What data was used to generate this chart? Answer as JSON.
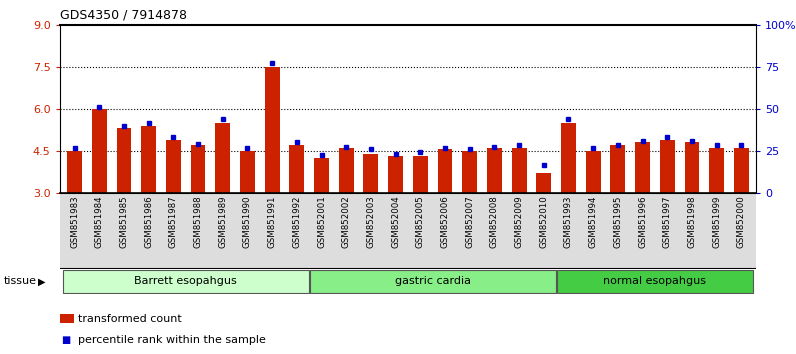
{
  "title": "GDS4350 / 7914878",
  "samples": [
    "GSM851983",
    "GSM851984",
    "GSM851985",
    "GSM851986",
    "GSM851987",
    "GSM851988",
    "GSM851989",
    "GSM851990",
    "GSM851991",
    "GSM851992",
    "GSM852001",
    "GSM852002",
    "GSM852003",
    "GSM852004",
    "GSM852005",
    "GSM852006",
    "GSM852007",
    "GSM852008",
    "GSM852009",
    "GSM852010",
    "GSM851993",
    "GSM851994",
    "GSM851995",
    "GSM851996",
    "GSM851997",
    "GSM851998",
    "GSM851999",
    "GSM852000"
  ],
  "red_values": [
    4.5,
    6.0,
    5.3,
    5.4,
    4.9,
    4.7,
    5.5,
    4.5,
    7.5,
    4.7,
    4.25,
    4.6,
    4.4,
    4.3,
    4.3,
    4.55,
    4.5,
    4.6,
    4.6,
    3.7,
    5.5,
    4.5,
    4.7,
    4.8,
    4.9,
    4.8,
    4.6,
    4.6
  ],
  "blue_values": [
    4.6,
    6.05,
    5.4,
    5.5,
    5.0,
    4.75,
    5.65,
    4.6,
    7.65,
    4.8,
    4.35,
    4.65,
    4.55,
    4.4,
    4.45,
    4.6,
    4.55,
    4.65,
    4.7,
    4.0,
    5.65,
    4.6,
    4.7,
    4.85,
    5.0,
    4.85,
    4.7,
    4.7
  ],
  "groups": [
    {
      "label": "Barrett esopahgus",
      "start": 0,
      "end": 9,
      "color": "#ccffcc"
    },
    {
      "label": "gastric cardia",
      "start": 10,
      "end": 19,
      "color": "#88ee88"
    },
    {
      "label": "normal esopahgus",
      "start": 20,
      "end": 27,
      "color": "#44cc44"
    }
  ],
  "ylim_left": [
    3,
    9
  ],
  "ylim_right": [
    0,
    100
  ],
  "yticks_left": [
    3,
    4.5,
    6,
    7.5,
    9
  ],
  "yticks_right": [
    0,
    25,
    50,
    75,
    100
  ],
  "bar_color": "#cc2200",
  "dot_color": "#0000cc",
  "background_color": "#ffffff",
  "tick_bg_color": "#dddddd",
  "bar_bottom": 3.0,
  "grid_yticks": [
    4.5,
    6.0,
    7.5
  ]
}
